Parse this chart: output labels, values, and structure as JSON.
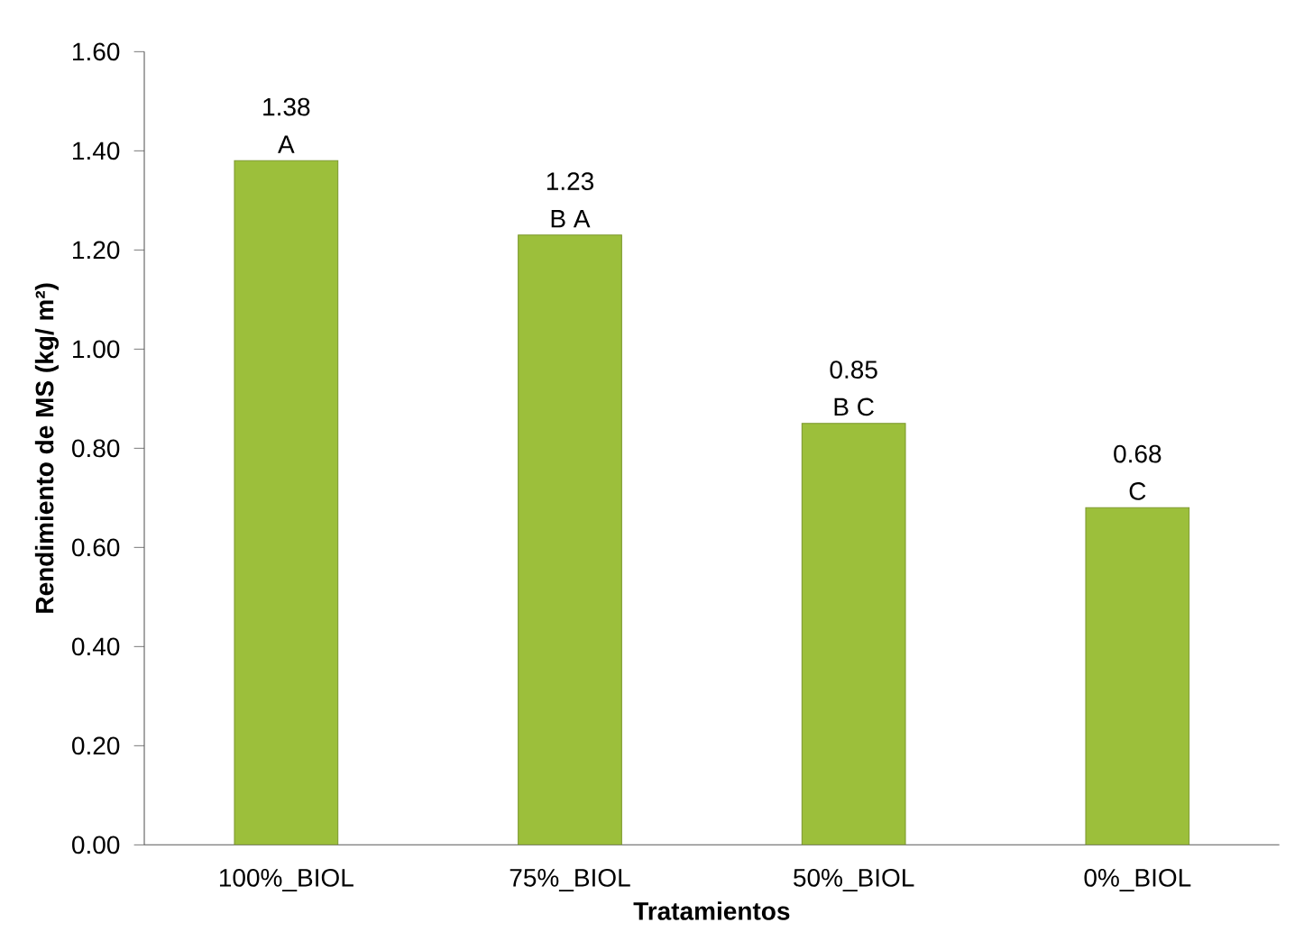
{
  "chart_data": {
    "type": "bar",
    "xlabel": "Tratamientos",
    "ylabel": "Rendimiento de MS  (kg/ m²)",
    "categories": [
      "100%_BIOL",
      "75%_BIOL",
      "50%_BIOL",
      "0%_BIOL"
    ],
    "values": [
      1.38,
      1.23,
      0.85,
      0.68
    ],
    "color": "#9cbf3b",
    "data_labels": true,
    "annotations": [
      {
        "text": "A",
        "x": "100%_BIOL",
        "y": 1.38
      },
      {
        "text": "B A",
        "x": "75%_BIOL",
        "y": 1.23
      },
      {
        "text": "B C",
        "x": "50%_BIOL",
        "y": 0.85
      },
      {
        "text": "C",
        "x": "0%_BIOL",
        "y": 0.68
      }
    ],
    "ylim": [
      0,
      1.6
    ],
    "yticks": [
      {
        "value": 0,
        "label": "0.00"
      },
      {
        "value": 0.2,
        "label": "0.20"
      },
      {
        "value": 0.4,
        "label": "0.40"
      },
      {
        "value": 0.6,
        "label": "0.60"
      },
      {
        "value": 0.8,
        "label": "0.80"
      },
      {
        "value": 1.0,
        "label": "1.00"
      },
      {
        "value": 1.2,
        "label": "1.20"
      },
      {
        "value": 1.4,
        "label": "1.40"
      },
      {
        "value": 1.6,
        "label": "1.60"
      }
    ],
    "grid": false
  }
}
